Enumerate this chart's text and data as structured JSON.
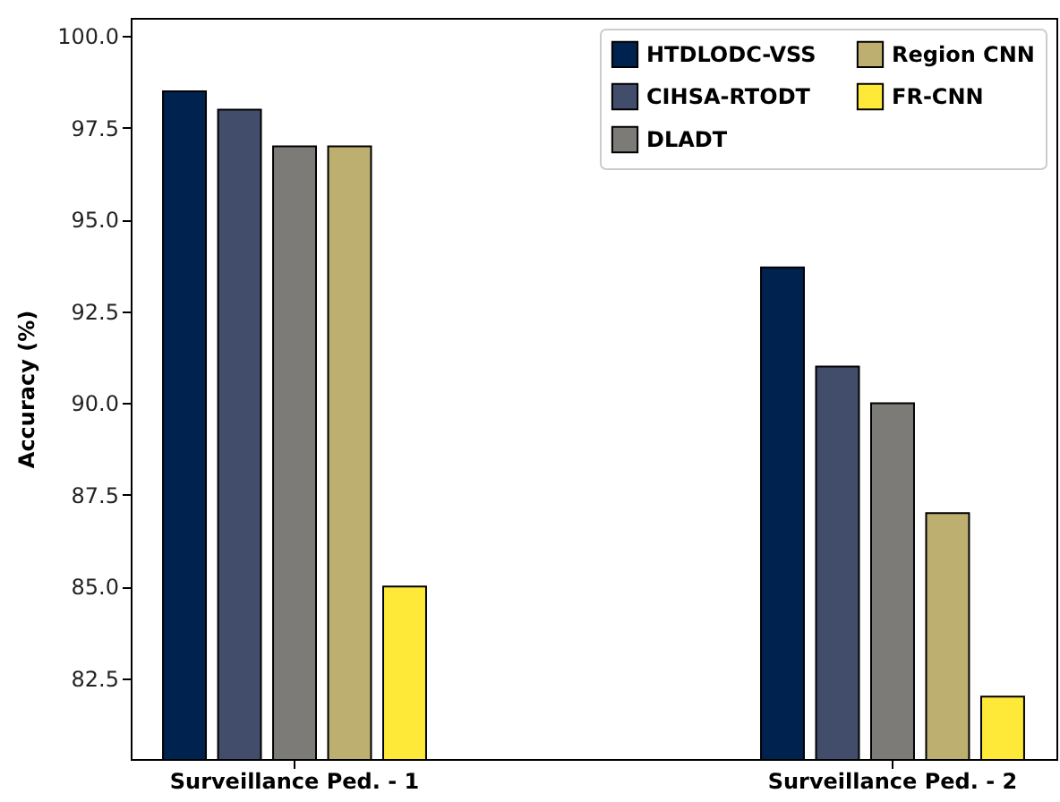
{
  "chart_data": {
    "type": "bar",
    "ylabel": "Accuracy (%)",
    "categories": [
      "Surveillance Ped. - 1",
      "Surveillance Ped. - 2"
    ],
    "series": [
      {
        "name": "HTDLODC-VSS",
        "color": "#00224e",
        "values": [
          98.5,
          93.7
        ]
      },
      {
        "name": "CIHSA-RTODT",
        "color": "#414d6b",
        "values": [
          98.0,
          91.0
        ]
      },
      {
        "name": "DLADT",
        "color": "#7c7b78",
        "values": [
          97.0,
          90.0
        ]
      },
      {
        "name": "Region CNN",
        "color": "#bcaf6f",
        "values": [
          97.0,
          87.0
        ]
      },
      {
        "name": "FR-CNN",
        "color": "#fee838",
        "values": [
          85.0,
          82.0
        ]
      }
    ],
    "ylim": [
      80.3,
      100.5
    ],
    "yticks": [
      {
        "value": 82.5,
        "label": "82.5"
      },
      {
        "value": 85,
        "label": "85.0"
      },
      {
        "value": 87.5,
        "label": "87.5"
      },
      {
        "value": 90,
        "label": "90.0"
      },
      {
        "value": 92.5,
        "label": "92.5"
      },
      {
        "value": 95,
        "label": "95.0"
      },
      {
        "value": 97.5,
        "label": "97.5"
      },
      {
        "value": 100,
        "label": "100.0"
      }
    ],
    "grid": false,
    "legend": "top right"
  }
}
